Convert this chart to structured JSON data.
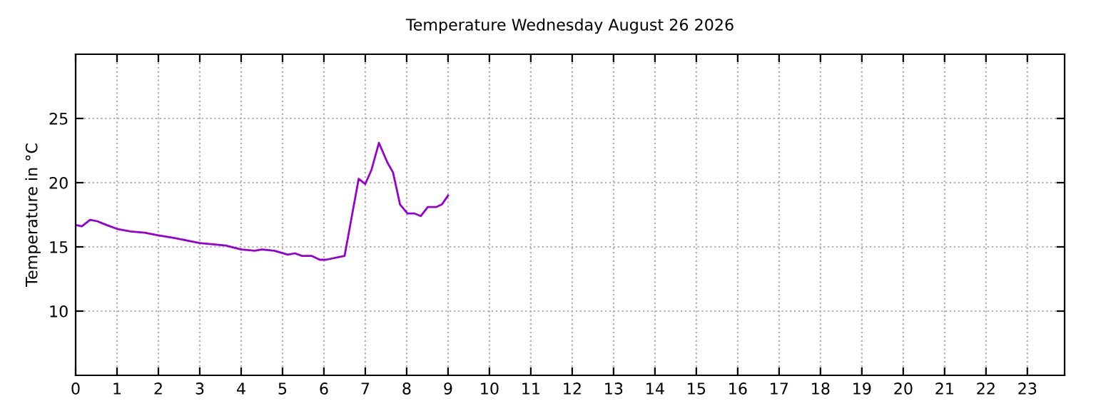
{
  "chart_data": {
    "type": "line",
    "title": "Temperature Wednesday August 26 2026",
    "ylabel": "Temperature in °C",
    "series": [
      {
        "color": "#9400d3",
        "x": [
          0,
          0.15,
          0.35,
          0.52,
          0.75,
          1.0,
          1.33,
          1.67,
          2.0,
          2.37,
          3.0,
          3.63,
          4.0,
          4.33,
          4.5,
          4.8,
          5.13,
          5.3,
          5.47,
          5.7,
          5.9,
          6.05,
          6.5,
          6.84,
          7.0,
          7.15,
          7.33,
          7.53,
          7.67,
          7.84,
          8.02,
          8.19,
          8.34,
          8.51,
          8.71,
          8.85,
          9.0
        ],
        "values": [
          16.7,
          16.6,
          17.1,
          17.0,
          16.7,
          16.4,
          16.2,
          16.1,
          15.9,
          15.7,
          15.3,
          15.1,
          14.8,
          14.7,
          14.8,
          14.7,
          14.4,
          14.5,
          14.3,
          14.3,
          14.0,
          14.0,
          14.3,
          20.3,
          19.9,
          21.0,
          23.1,
          21.6,
          20.8,
          18.3,
          17.6,
          17.6,
          17.4,
          18.1,
          18.1,
          18.3,
          19.0
        ]
      }
    ],
    "xlim": [
      0,
      23.9
    ],
    "xticks": [
      0,
      1,
      2,
      3,
      4,
      5,
      6,
      7,
      8,
      9,
      10,
      11,
      12,
      13,
      14,
      15,
      16,
      17,
      18,
      19,
      20,
      21,
      22,
      23
    ],
    "ylim": [
      5,
      30
    ],
    "yticks": [
      10,
      15,
      20,
      25
    ],
    "grid": true,
    "line_style": "solid",
    "marker": "none"
  }
}
